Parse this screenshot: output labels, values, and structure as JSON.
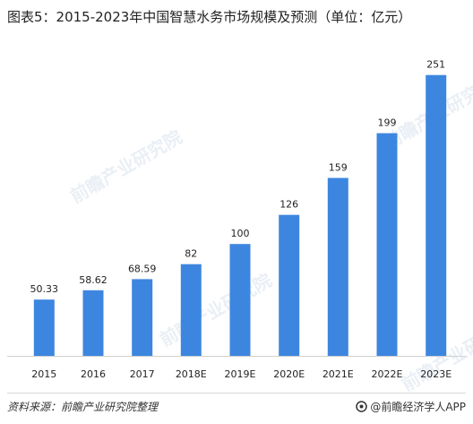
{
  "title": "图表5：2015-2023年中国智慧水务市场规模及预测（单位：亿元）",
  "chart_data": {
    "type": "bar",
    "categories": [
      "2015",
      "2016",
      "2017",
      "2018E",
      "2019E",
      "2020E",
      "2021E",
      "2022E",
      "2023E"
    ],
    "values": [
      50.33,
      58.62,
      68.59,
      82,
      100,
      126,
      159,
      199,
      251
    ],
    "value_labels": [
      "50.33",
      "58.62",
      "68.59",
      "82",
      "100",
      "126",
      "159",
      "199",
      "251"
    ],
    "ylim": [
      0,
      270
    ],
    "grid": false,
    "bar_color": "#3d86e0"
  },
  "footer": {
    "source": "资料来源：前瞻产业研究院整理",
    "brand": "@前瞻经济学人APP"
  },
  "watermark": {
    "text": "前瞻产业研究院"
  }
}
